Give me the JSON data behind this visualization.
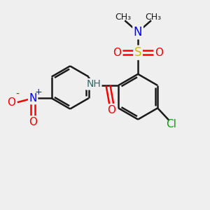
{
  "bg_color": "#efefef",
  "bond_color": "#1a1a1a",
  "bond_width": 1.8,
  "dbo": 0.055,
  "figsize": [
    3.0,
    3.0
  ],
  "dpi": 100,
  "xlim": [
    -2.5,
    2.5
  ],
  "ylim": [
    -2.8,
    2.2
  ]
}
